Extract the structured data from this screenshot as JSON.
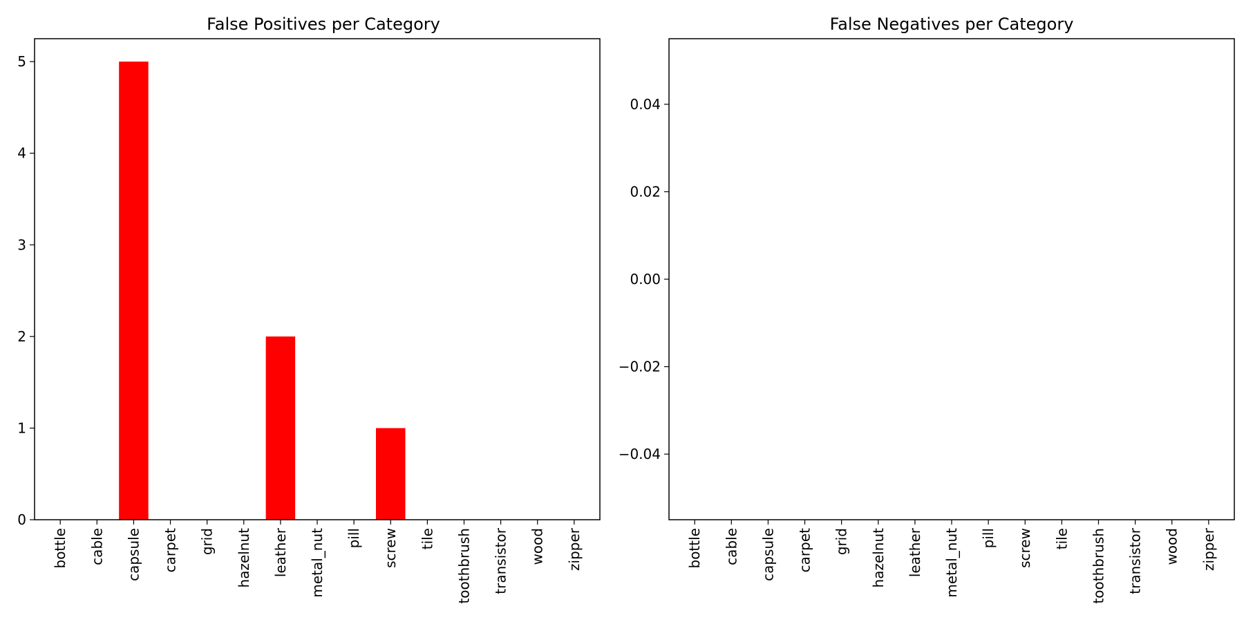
{
  "colors": {
    "bar": "#ff0000",
    "axes": "#000000"
  },
  "chart_data": [
    {
      "type": "bar",
      "title": "False Positives per Category",
      "categories": [
        "bottle",
        "cable",
        "capsule",
        "carpet",
        "grid",
        "hazelnut",
        "leather",
        "metal_nut",
        "pill",
        "screw",
        "tile",
        "toothbrush",
        "transistor",
        "wood",
        "zipper"
      ],
      "values": [
        0,
        0,
        5,
        0,
        0,
        0,
        2,
        0,
        0,
        1,
        0,
        0,
        0,
        0,
        0
      ],
      "ylim": [
        0,
        5.25
      ],
      "yticks": [
        0,
        1,
        2,
        3,
        4,
        5
      ],
      "ytick_labels": [
        "0",
        "1",
        "2",
        "3",
        "4",
        "5"
      ],
      "grid": false,
      "xlabel": "",
      "ylabel": ""
    },
    {
      "type": "bar",
      "title": "False Negatives per Category",
      "categories": [
        "bottle",
        "cable",
        "capsule",
        "carpet",
        "grid",
        "hazelnut",
        "leather",
        "metal_nut",
        "pill",
        "screw",
        "tile",
        "toothbrush",
        "transistor",
        "wood",
        "zipper"
      ],
      "values": [
        0,
        0,
        0,
        0,
        0,
        0,
        0,
        0,
        0,
        0,
        0,
        0,
        0,
        0,
        0
      ],
      "ylim": [
        -0.055,
        0.055
      ],
      "yticks": [
        -0.04,
        -0.02,
        0,
        0.02,
        0.04
      ],
      "ytick_labels": [
        "−0.04",
        "−0.02",
        "0.00",
        "0.02",
        "0.04"
      ],
      "grid": false,
      "xlabel": "",
      "ylabel": ""
    }
  ]
}
